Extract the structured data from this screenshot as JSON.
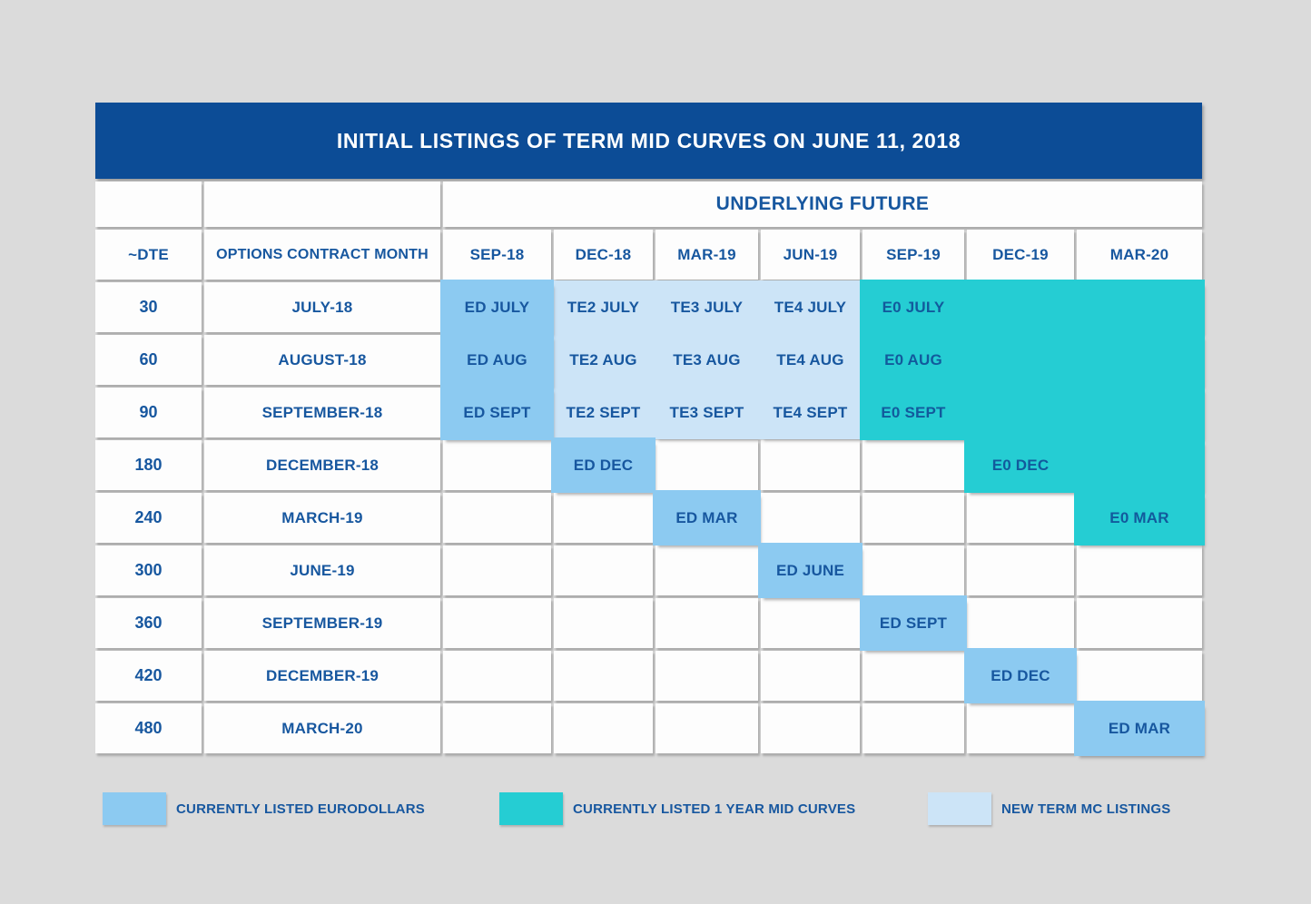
{
  "chart_data": {
    "type": "table",
    "title": "INITIAL LISTINGS OF TERM MID CURVES ON JUNE 11, 2018",
    "group_header": "UNDERLYING FUTURE",
    "columns": [
      "~DTE",
      "OPTIONS CONTRACT MONTH",
      "SEP-18",
      "DEC-18",
      "MAR-19",
      "JUN-19",
      "SEP-19",
      "DEC-19",
      "MAR-20"
    ],
    "rows": [
      {
        "dte": "30",
        "contract_month": "JULY-18",
        "cells": [
          {
            "label": "ED JULY",
            "type": "eurodollar"
          },
          {
            "label": "TE2 JULY",
            "type": "new_listing"
          },
          {
            "label": "TE3 JULY",
            "type": "new_listing"
          },
          {
            "label": "TE4 JULY",
            "type": "new_listing"
          },
          {
            "label": "E0 JULY",
            "type": "midcurve"
          },
          {
            "label": "",
            "type": "midcurve"
          },
          {
            "label": "",
            "type": "midcurve"
          }
        ]
      },
      {
        "dte": "60",
        "contract_month": "AUGUST-18",
        "cells": [
          {
            "label": "ED AUG",
            "type": "eurodollar"
          },
          {
            "label": "TE2 AUG",
            "type": "new_listing"
          },
          {
            "label": "TE3 AUG",
            "type": "new_listing"
          },
          {
            "label": "TE4 AUG",
            "type": "new_listing"
          },
          {
            "label": "E0 AUG",
            "type": "midcurve"
          },
          {
            "label": "",
            "type": "midcurve"
          },
          {
            "label": "",
            "type": "midcurve"
          }
        ]
      },
      {
        "dte": "90",
        "contract_month": "SEPTEMBER-18",
        "cells": [
          {
            "label": "ED SEPT",
            "type": "eurodollar"
          },
          {
            "label": "TE2 SEPT",
            "type": "new_listing"
          },
          {
            "label": "TE3 SEPT",
            "type": "new_listing"
          },
          {
            "label": "TE4 SEPT",
            "type": "new_listing"
          },
          {
            "label": "E0 SEPT",
            "type": "midcurve"
          },
          {
            "label": "",
            "type": "midcurve"
          },
          {
            "label": "",
            "type": "midcurve"
          }
        ]
      },
      {
        "dte": "180",
        "contract_month": "DECEMBER-18",
        "cells": [
          {
            "label": "",
            "type": "empty"
          },
          {
            "label": "ED DEC",
            "type": "eurodollar"
          },
          {
            "label": "",
            "type": "empty"
          },
          {
            "label": "",
            "type": "empty"
          },
          {
            "label": "",
            "type": "empty"
          },
          {
            "label": "E0 DEC",
            "type": "midcurve"
          },
          {
            "label": "",
            "type": "midcurve"
          }
        ]
      },
      {
        "dte": "240",
        "contract_month": "MARCH-19",
        "cells": [
          {
            "label": "",
            "type": "empty"
          },
          {
            "label": "",
            "type": "empty"
          },
          {
            "label": "ED MAR",
            "type": "eurodollar"
          },
          {
            "label": "",
            "type": "empty"
          },
          {
            "label": "",
            "type": "empty"
          },
          {
            "label": "",
            "type": "empty"
          },
          {
            "label": "E0 MAR",
            "type": "midcurve"
          }
        ]
      },
      {
        "dte": "300",
        "contract_month": "JUNE-19",
        "cells": [
          {
            "label": "",
            "type": "empty"
          },
          {
            "label": "",
            "type": "empty"
          },
          {
            "label": "",
            "type": "empty"
          },
          {
            "label": "ED JUNE",
            "type": "eurodollar"
          },
          {
            "label": "",
            "type": "empty"
          },
          {
            "label": "",
            "type": "empty"
          },
          {
            "label": "",
            "type": "empty"
          }
        ]
      },
      {
        "dte": "360",
        "contract_month": "SEPTEMBER-19",
        "cells": [
          {
            "label": "",
            "type": "empty"
          },
          {
            "label": "",
            "type": "empty"
          },
          {
            "label": "",
            "type": "empty"
          },
          {
            "label": "",
            "type": "empty"
          },
          {
            "label": "ED SEPT",
            "type": "eurodollar"
          },
          {
            "label": "",
            "type": "empty"
          },
          {
            "label": "",
            "type": "empty"
          }
        ]
      },
      {
        "dte": "420",
        "contract_month": "DECEMBER-19",
        "cells": [
          {
            "label": "",
            "type": "empty"
          },
          {
            "label": "",
            "type": "empty"
          },
          {
            "label": "",
            "type": "empty"
          },
          {
            "label": "",
            "type": "empty"
          },
          {
            "label": "",
            "type": "empty"
          },
          {
            "label": "ED DEC",
            "type": "eurodollar"
          },
          {
            "label": "",
            "type": "empty"
          }
        ]
      },
      {
        "dte": "480",
        "contract_month": "MARCH-20",
        "cells": [
          {
            "label": "",
            "type": "empty"
          },
          {
            "label": "",
            "type": "empty"
          },
          {
            "label": "",
            "type": "empty"
          },
          {
            "label": "",
            "type": "empty"
          },
          {
            "label": "",
            "type": "empty"
          },
          {
            "label": "",
            "type": "empty"
          },
          {
            "label": "ED MAR",
            "type": "eurodollar"
          }
        ]
      }
    ]
  },
  "legend": {
    "items": [
      {
        "label": "CURRENTLY LISTED EURODOLLARS",
        "color": "#8CCAF1",
        "type": "eurodollar"
      },
      {
        "label": "CURRENTLY LISTED 1 YEAR MID CURVES",
        "color": "#25CDD3",
        "type": "midcurve"
      },
      {
        "label": "NEW TERM MC LISTINGS",
        "color": "#CCE4F7",
        "type": "new_listing"
      }
    ]
  },
  "colors": {
    "page_background": "#DBDBDB",
    "title_bar": "#0C4C96",
    "title_text": "#FFFFFF",
    "text_navy": "#17579F",
    "eurodollar_cell": "#8CCAF1",
    "midcurve_cell": "#25CDD3",
    "new_listing_cell": "#CCE4F7",
    "empty_cell": "#FDFDFD"
  }
}
